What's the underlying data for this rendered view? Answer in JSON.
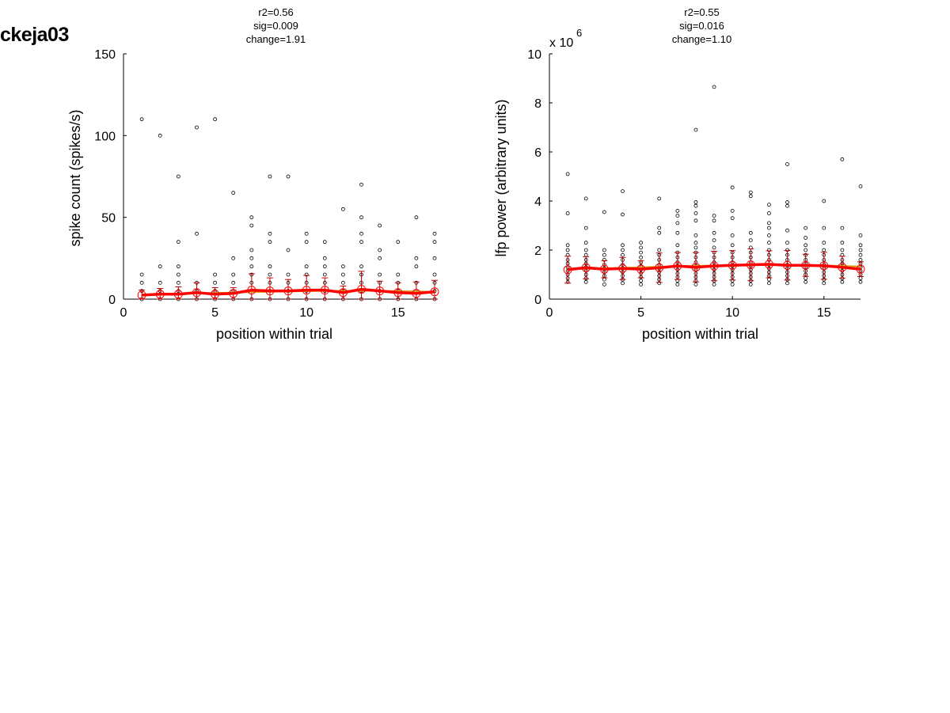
{
  "page": {
    "title": "ckeja03"
  },
  "colors": {
    "mean": "#ff0000",
    "fit": "#d4a017",
    "error": "#c00000",
    "points": "#000000"
  },
  "chart_data": [
    {
      "type": "scatter",
      "title_lines": [
        "r2=0.56",
        "sig=0.009",
        "change=1.91"
      ],
      "xlabel": "position within trial",
      "ylabel": "spike count (spikes/s)",
      "xlim": [
        0,
        17
      ],
      "ylim": [
        0,
        150
      ],
      "xticks": [
        0,
        5,
        10,
        15
      ],
      "yticks": [
        0,
        50,
        100,
        150
      ],
      "scale_label": "",
      "points": [
        [
          1,
          0
        ],
        [
          1,
          5
        ],
        [
          1,
          10
        ],
        [
          1,
          15
        ],
        [
          1,
          110
        ],
        [
          2,
          0
        ],
        [
          2,
          5
        ],
        [
          2,
          10
        ],
        [
          2,
          20
        ],
        [
          2,
          100
        ],
        [
          3,
          0
        ],
        [
          3,
          5
        ],
        [
          3,
          10
        ],
        [
          3,
          15
        ],
        [
          3,
          20
        ],
        [
          3,
          35
        ],
        [
          3,
          75
        ],
        [
          4,
          0
        ],
        [
          4,
          5
        ],
        [
          4,
          10
        ],
        [
          4,
          40
        ],
        [
          4,
          105
        ],
        [
          5,
          0
        ],
        [
          5,
          5
        ],
        [
          5,
          10
        ],
        [
          5,
          15
        ],
        [
          5,
          110
        ],
        [
          6,
          0
        ],
        [
          6,
          5
        ],
        [
          6,
          10
        ],
        [
          6,
          15
        ],
        [
          6,
          25
        ],
        [
          6,
          65
        ],
        [
          7,
          0
        ],
        [
          7,
          5
        ],
        [
          7,
          10
        ],
        [
          7,
          15
        ],
        [
          7,
          20
        ],
        [
          7,
          25
        ],
        [
          7,
          30
        ],
        [
          7,
          45
        ],
        [
          7,
          50
        ],
        [
          8,
          0
        ],
        [
          8,
          5
        ],
        [
          8,
          10
        ],
        [
          8,
          15
        ],
        [
          8,
          20
        ],
        [
          8,
          35
        ],
        [
          8,
          40
        ],
        [
          8,
          75
        ],
        [
          9,
          0
        ],
        [
          9,
          5
        ],
        [
          9,
          10
        ],
        [
          9,
          15
        ],
        [
          9,
          30
        ],
        [
          9,
          75
        ],
        [
          10,
          0
        ],
        [
          10,
          5
        ],
        [
          10,
          10
        ],
        [
          10,
          15
        ],
        [
          10,
          20
        ],
        [
          10,
          35
        ],
        [
          10,
          40
        ],
        [
          11,
          0
        ],
        [
          11,
          5
        ],
        [
          11,
          10
        ],
        [
          11,
          15
        ],
        [
          11,
          20
        ],
        [
          11,
          25
        ],
        [
          11,
          35
        ],
        [
          12,
          0
        ],
        [
          12,
          5
        ],
        [
          12,
          10
        ],
        [
          12,
          15
        ],
        [
          12,
          20
        ],
        [
          12,
          55
        ],
        [
          13,
          0
        ],
        [
          13,
          5
        ],
        [
          13,
          10
        ],
        [
          13,
          15
        ],
        [
          13,
          20
        ],
        [
          13,
          35
        ],
        [
          13,
          40
        ],
        [
          13,
          50
        ],
        [
          13,
          70
        ],
        [
          14,
          0
        ],
        [
          14,
          5
        ],
        [
          14,
          10
        ],
        [
          14,
          15
        ],
        [
          14,
          25
        ],
        [
          14,
          30
        ],
        [
          14,
          45
        ],
        [
          15,
          0
        ],
        [
          15,
          5
        ],
        [
          15,
          10
        ],
        [
          15,
          15
        ],
        [
          15,
          35
        ],
        [
          16,
          0
        ],
        [
          16,
          5
        ],
        [
          16,
          10
        ],
        [
          16,
          20
        ],
        [
          16,
          25
        ],
        [
          16,
          50
        ],
        [
          17,
          0
        ],
        [
          17,
          5
        ],
        [
          17,
          10
        ],
        [
          17,
          15
        ],
        [
          17,
          25
        ],
        [
          17,
          35
        ],
        [
          17,
          40
        ]
      ],
      "mean_x": [
        1,
        2,
        3,
        4,
        5,
        6,
        7,
        8,
        9,
        10,
        11,
        12,
        13,
        14,
        15,
        16,
        17
      ],
      "mean_y": [
        2.5,
        3,
        3,
        4,
        3,
        3.5,
        5.5,
        5,
        5,
        5.5,
        5.5,
        4,
        6,
        5,
        4,
        3.5,
        4.5
      ],
      "err": [
        3,
        3.5,
        4.5,
        6,
        4,
        3.5,
        10,
        8,
        7,
        9,
        7.5,
        4,
        11,
        6,
        6,
        7,
        7
      ],
      "fit_y": [
        2.8,
        3,
        3.3,
        3.5,
        3.8,
        4,
        4.3,
        4.5,
        4.7,
        4.9,
        5,
        5.1,
        5.1,
        5,
        4.9,
        4.7,
        4.5
      ]
    },
    {
      "type": "scatter",
      "title_lines": [
        "r2=0.55",
        "sig=0.016",
        "change=1.10"
      ],
      "xlabel": "position within trial",
      "ylabel": "lfp power (arbitrary units)",
      "xlim": [
        0,
        17
      ],
      "ylim": [
        0,
        10
      ],
      "xticks": [
        0,
        5,
        10,
        15
      ],
      "yticks": [
        0,
        2,
        4,
        6,
        8,
        10
      ],
      "scale_label": "x 10",
      "scale_exp": "6",
      "points": [
        [
          1,
          0.7
        ],
        [
          1,
          0.85
        ],
        [
          1,
          1.0
        ],
        [
          1,
          1.15
        ],
        [
          1,
          1.3
        ],
        [
          1,
          1.45
        ],
        [
          1,
          1.6
        ],
        [
          1,
          1.8
        ],
        [
          1,
          2.0
        ],
        [
          1,
          2.2
        ],
        [
          1,
          3.5
        ],
        [
          1,
          5.1
        ],
        [
          2,
          0.7
        ],
        [
          2,
          0.85
        ],
        [
          2,
          1.0
        ],
        [
          2,
          1.15
        ],
        [
          2,
          1.3
        ],
        [
          2,
          1.45
        ],
        [
          2,
          1.6
        ],
        [
          2,
          1.8
        ],
        [
          2,
          2.0
        ],
        [
          2,
          2.3
        ],
        [
          2,
          2.9
        ],
        [
          2,
          4.1
        ],
        [
          3,
          0.6
        ],
        [
          3,
          0.8
        ],
        [
          3,
          0.95
        ],
        [
          3,
          1.1
        ],
        [
          3,
          1.25
        ],
        [
          3,
          1.4
        ],
        [
          3,
          1.6
        ],
        [
          3,
          1.8
        ],
        [
          3,
          2.0
        ],
        [
          3,
          3.55
        ],
        [
          4,
          0.65
        ],
        [
          4,
          0.8
        ],
        [
          4,
          0.95
        ],
        [
          4,
          1.1
        ],
        [
          4,
          1.25
        ],
        [
          4,
          1.4
        ],
        [
          4,
          1.6
        ],
        [
          4,
          1.8
        ],
        [
          4,
          2.0
        ],
        [
          4,
          2.2
        ],
        [
          4,
          3.45
        ],
        [
          4,
          4.4
        ],
        [
          5,
          0.6
        ],
        [
          5,
          0.75
        ],
        [
          5,
          0.9
        ],
        [
          5,
          1.05
        ],
        [
          5,
          1.2
        ],
        [
          5,
          1.35
        ],
        [
          5,
          1.5
        ],
        [
          5,
          1.7
        ],
        [
          5,
          1.9
        ],
        [
          5,
          2.1
        ],
        [
          5,
          2.3
        ],
        [
          6,
          0.65
        ],
        [
          6,
          0.8
        ],
        [
          6,
          0.95
        ],
        [
          6,
          1.1
        ],
        [
          6,
          1.25
        ],
        [
          6,
          1.4
        ],
        [
          6,
          1.6
        ],
        [
          6,
          1.8
        ],
        [
          6,
          2.0
        ],
        [
          6,
          2.7
        ],
        [
          6,
          2.9
        ],
        [
          6,
          4.1
        ],
        [
          7,
          0.6
        ],
        [
          7,
          0.75
        ],
        [
          7,
          0.9
        ],
        [
          7,
          1.05
        ],
        [
          7,
          1.2
        ],
        [
          7,
          1.35
        ],
        [
          7,
          1.5
        ],
        [
          7,
          1.7
        ],
        [
          7,
          1.9
        ],
        [
          7,
          2.2
        ],
        [
          7,
          2.7
        ],
        [
          7,
          3.1
        ],
        [
          7,
          3.4
        ],
        [
          7,
          3.6
        ],
        [
          8,
          0.6
        ],
        [
          8,
          0.75
        ],
        [
          8,
          0.9
        ],
        [
          8,
          1.05
        ],
        [
          8,
          1.2
        ],
        [
          8,
          1.35
        ],
        [
          8,
          1.5
        ],
        [
          8,
          1.7
        ],
        [
          8,
          1.9
        ],
        [
          8,
          2.1
        ],
        [
          8,
          2.3
        ],
        [
          8,
          2.6
        ],
        [
          8,
          3.2
        ],
        [
          8,
          3.5
        ],
        [
          8,
          3.8
        ],
        [
          8,
          3.95
        ],
        [
          8,
          6.9
        ],
        [
          9,
          0.6
        ],
        [
          9,
          0.75
        ],
        [
          9,
          0.9
        ],
        [
          9,
          1.05
        ],
        [
          9,
          1.2
        ],
        [
          9,
          1.35
        ],
        [
          9,
          1.5
        ],
        [
          9,
          1.7
        ],
        [
          9,
          1.9
        ],
        [
          9,
          2.1
        ],
        [
          9,
          2.4
        ],
        [
          9,
          2.7
        ],
        [
          9,
          3.2
        ],
        [
          9,
          3.4
        ],
        [
          9,
          8.65
        ],
        [
          10,
          0.6
        ],
        [
          10,
          0.75
        ],
        [
          10,
          0.9
        ],
        [
          10,
          1.05
        ],
        [
          10,
          1.2
        ],
        [
          10,
          1.35
        ],
        [
          10,
          1.5
        ],
        [
          10,
          1.7
        ],
        [
          10,
          1.9
        ],
        [
          10,
          2.2
        ],
        [
          10,
          2.6
        ],
        [
          10,
          3.3
        ],
        [
          10,
          3.6
        ],
        [
          10,
          4.55
        ],
        [
          11,
          0.6
        ],
        [
          11,
          0.75
        ],
        [
          11,
          0.9
        ],
        [
          11,
          1.05
        ],
        [
          11,
          1.2
        ],
        [
          11,
          1.35
        ],
        [
          11,
          1.5
        ],
        [
          11,
          1.7
        ],
        [
          11,
          1.9
        ],
        [
          11,
          2.1
        ],
        [
          11,
          2.4
        ],
        [
          11,
          2.7
        ],
        [
          11,
          4.2
        ],
        [
          11,
          4.35
        ],
        [
          12,
          0.65
        ],
        [
          12,
          0.8
        ],
        [
          12,
          0.95
        ],
        [
          12,
          1.1
        ],
        [
          12,
          1.25
        ],
        [
          12,
          1.4
        ],
        [
          12,
          1.6
        ],
        [
          12,
          1.8
        ],
        [
          12,
          2.0
        ],
        [
          12,
          2.3
        ],
        [
          12,
          2.6
        ],
        [
          12,
          2.9
        ],
        [
          12,
          3.1
        ],
        [
          12,
          3.5
        ],
        [
          12,
          3.85
        ],
        [
          13,
          0.65
        ],
        [
          13,
          0.8
        ],
        [
          13,
          0.95
        ],
        [
          13,
          1.1
        ],
        [
          13,
          1.25
        ],
        [
          13,
          1.4
        ],
        [
          13,
          1.6
        ],
        [
          13,
          1.8
        ],
        [
          13,
          2.0
        ],
        [
          13,
          2.3
        ],
        [
          13,
          2.8
        ],
        [
          13,
          3.8
        ],
        [
          13,
          3.95
        ],
        [
          13,
          5.5
        ],
        [
          14,
          0.7
        ],
        [
          14,
          0.85
        ],
        [
          14,
          1.0
        ],
        [
          14,
          1.15
        ],
        [
          14,
          1.3
        ],
        [
          14,
          1.45
        ],
        [
          14,
          1.6
        ],
        [
          14,
          1.8
        ],
        [
          14,
          2.0
        ],
        [
          14,
          2.2
        ],
        [
          14,
          2.5
        ],
        [
          14,
          2.9
        ],
        [
          15,
          0.65
        ],
        [
          15,
          0.8
        ],
        [
          15,
          0.95
        ],
        [
          15,
          1.1
        ],
        [
          15,
          1.25
        ],
        [
          15,
          1.4
        ],
        [
          15,
          1.6
        ],
        [
          15,
          1.8
        ],
        [
          15,
          2.0
        ],
        [
          15,
          2.3
        ],
        [
          15,
          2.9
        ],
        [
          15,
          4.0
        ],
        [
          16,
          0.7
        ],
        [
          16,
          0.85
        ],
        [
          16,
          1.0
        ],
        [
          16,
          1.15
        ],
        [
          16,
          1.3
        ],
        [
          16,
          1.45
        ],
        [
          16,
          1.6
        ],
        [
          16,
          1.8
        ],
        [
          16,
          2.0
        ],
        [
          16,
          2.3
        ],
        [
          16,
          2.9
        ],
        [
          16,
          5.7
        ],
        [
          17,
          0.7
        ],
        [
          17,
          0.85
        ],
        [
          17,
          1.0
        ],
        [
          17,
          1.15
        ],
        [
          17,
          1.3
        ],
        [
          17,
          1.45
        ],
        [
          17,
          1.6
        ],
        [
          17,
          1.8
        ],
        [
          17,
          2.0
        ],
        [
          17,
          2.2
        ],
        [
          17,
          2.6
        ],
        [
          17,
          4.6
        ]
      ],
      "mean_x": [
        1,
        2,
        3,
        4,
        5,
        6,
        7,
        8,
        9,
        10,
        11,
        12,
        13,
        14,
        15,
        16,
        17
      ],
      "mean_y": [
        1.2,
        1.28,
        1.22,
        1.25,
        1.22,
        1.28,
        1.35,
        1.3,
        1.35,
        1.38,
        1.4,
        1.42,
        1.38,
        1.38,
        1.36,
        1.3,
        1.22
      ],
      "err": [
        0.55,
        0.45,
        0.35,
        0.45,
        0.35,
        0.6,
        0.55,
        0.6,
        0.6,
        0.6,
        0.65,
        0.55,
        0.6,
        0.45,
        0.55,
        0.45,
        0.3
      ],
      "fit_y": [
        1.22,
        1.24,
        1.26,
        1.28,
        1.3,
        1.32,
        1.34,
        1.36,
        1.37,
        1.38,
        1.39,
        1.39,
        1.39,
        1.38,
        1.37,
        1.35,
        1.33
      ]
    }
  ]
}
